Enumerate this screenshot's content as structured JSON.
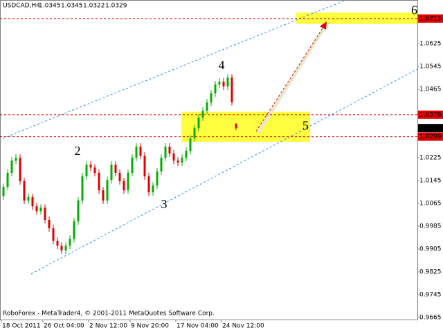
{
  "chart_data": {
    "type": "ohlc",
    "symbol": "USDCAD,H4",
    "footer": "RoboForex - MetaTrader4, © 2001-2011 MetaQuotes Software Corp.",
    "categories": [
      "18 Oct 2011",
      null,
      null,
      null,
      null,
      null,
      null,
      null,
      null,
      null,
      "26 Oct 04:00",
      null,
      null,
      null,
      null,
      null,
      null,
      null,
      null,
      null,
      null,
      "2 Nov 12:00",
      null,
      null,
      null,
      null,
      null,
      null,
      null,
      null,
      null,
      "9 Nov 20:00",
      null,
      null,
      null,
      null,
      null,
      null,
      null,
      null,
      null,
      null,
      "17 Nov 04:00",
      null,
      null,
      null,
      null,
      null,
      null,
      null,
      null,
      null,
      null,
      "24 Nov 12:00",
      null,
      null,
      null
    ],
    "open": [
      1.009,
      1.0123,
      1.0172,
      1.0215,
      1.0225,
      1.0143,
      1.0075,
      1.0087,
      1.0055,
      1.0038,
      1.005,
      1.0007,
      0.9978,
      0.9934,
      0.9917,
      0.99,
      0.9917,
      0.9941,
      1.0002,
      1.0075,
      1.016,
      1.0201,
      1.0191,
      1.0172,
      1.0111,
      1.0075,
      1.0147,
      1.0201,
      1.0172,
      1.0143,
      1.0111,
      1.0172,
      1.0225,
      1.0264,
      1.0232,
      1.016,
      1.0104,
      1.0128,
      1.0177,
      1.0225,
      1.0264,
      1.024,
      1.0215,
      1.0208,
      1.0225,
      1.0249,
      1.0293,
      1.0329,
      1.0366,
      1.039,
      1.0419,
      1.0451,
      1.0482,
      1.0492,
      1.0475,
      1.0506,
      1.0345
    ],
    "high": [
      1.0135,
      1.0184,
      1.0227,
      1.0237,
      1.0237,
      1.0155,
      1.0099,
      1.0099,
      1.0067,
      1.0062,
      1.0062,
      1.0019,
      0.999,
      0.9946,
      0.9929,
      0.9929,
      0.9953,
      1.0014,
      1.0087,
      1.0172,
      1.0213,
      1.0213,
      1.0203,
      1.0184,
      1.0123,
      1.0159,
      1.0213,
      1.0213,
      1.0184,
      1.0155,
      1.0184,
      1.0237,
      1.0276,
      1.0276,
      1.0244,
      1.0172,
      1.014,
      1.0189,
      1.0237,
      1.0276,
      1.0276,
      1.0252,
      1.0227,
      1.0237,
      1.0261,
      1.0305,
      1.0341,
      1.0378,
      1.0402,
      1.0431,
      1.0463,
      1.0494,
      1.0504,
      1.0504,
      1.0518,
      1.0518,
      1.0345
    ],
    "low": [
      1.0078,
      1.0111,
      1.016,
      1.0203,
      1.0131,
      1.0063,
      1.0063,
      1.0043,
      1.0026,
      1.0026,
      0.9995,
      0.9966,
      0.9922,
      0.9905,
      0.9888,
      0.9888,
      0.9905,
      0.9929,
      0.999,
      1.0063,
      1.0148,
      1.0179,
      1.016,
      1.0099,
      1.0063,
      1.0063,
      1.0135,
      1.016,
      1.0131,
      1.0099,
      1.0099,
      1.016,
      1.0213,
      1.022,
      1.0148,
      1.0092,
      1.0092,
      1.0116,
      1.0165,
      1.0213,
      1.0228,
      1.0203,
      1.0196,
      1.0196,
      1.0213,
      1.0237,
      1.0281,
      1.0317,
      1.0354,
      1.0378,
      1.0407,
      1.0439,
      1.047,
      1.0463,
      1.0463,
      1.0408,
      1.0322
    ],
    "close": [
      1.0123,
      1.0172,
      1.0215,
      1.0225,
      1.0143,
      1.0075,
      1.0087,
      1.0055,
      1.0038,
      1.005,
      1.0007,
      0.9978,
      0.9934,
      0.9917,
      0.99,
      0.9917,
      0.9941,
      1.0002,
      1.0075,
      1.016,
      1.0201,
      1.0191,
      1.0172,
      1.0111,
      1.0075,
      1.0147,
      1.0201,
      1.0172,
      1.0143,
      1.0111,
      1.0172,
      1.0225,
      1.0264,
      1.0232,
      1.016,
      1.0104,
      1.0128,
      1.0177,
      1.0225,
      1.0264,
      1.024,
      1.0215,
      1.0208,
      1.0225,
      1.0249,
      1.0293,
      1.0329,
      1.0366,
      1.039,
      1.0419,
      1.0451,
      1.0482,
      1.0492,
      1.0475,
      1.0506,
      1.042,
      1.0329
    ],
    "up_color": "#00b000",
    "down_color": "#e00000",
    "ylim": [
      0.9658,
      1.0778
    ],
    "yticks": [
      1.0625,
      1.0545,
      1.0465,
      1.0225,
      1.0145,
      1.0065,
      0.9985,
      0.9905,
      0.9825,
      0.9745,
      0.9665
    ],
    "levels": [
      1.0713,
      1.0376,
      1.0299
    ],
    "level_color": "#e00000",
    "zones": [
      {
        "label": "5",
        "ylim": [
          1.0281,
          1.0386
        ]
      },
      {
        "label": "6",
        "ylim": [
          1.0694,
          1.0734
        ]
      }
    ],
    "zone_color": "#ffff40",
    "waves": [
      "2",
      "3",
      "4"
    ]
  }
}
